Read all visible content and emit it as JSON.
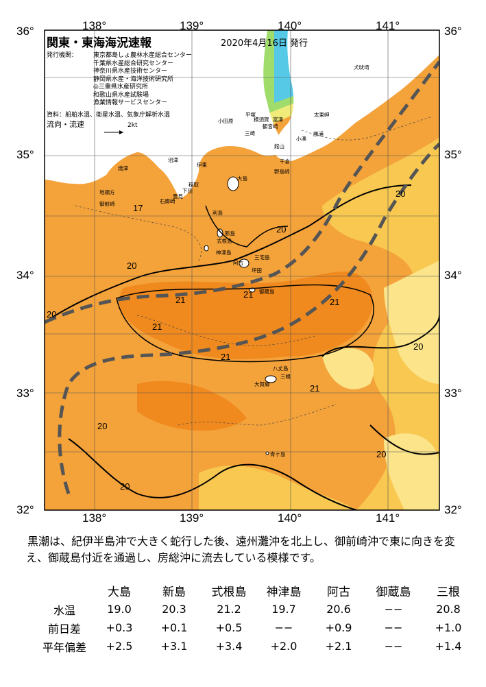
{
  "map": {
    "title": "関東・東海海況速報",
    "date": "2020年4月16日 発行",
    "issuer_label": "発行機関：",
    "issuers": [
      "東京都島しょ農林水産総合センター",
      "千葉県水産総合研究センター",
      "神奈川県水産技術センター",
      "静岡県水産・海洋技術研究所",
      "◎三重県水産研究所",
      "和歌山県水産試験場",
      "漁業情報サービスセンター"
    ],
    "data_source": "資料：船舶水温、衛星水温、気象庁解析水温",
    "flow_label": "流向・流速",
    "flow_scale": "2kt",
    "lon_ticks": [
      "138°",
      "139°",
      "140°",
      "141°"
    ],
    "lat_ticks": [
      "36°",
      "35°",
      "34°",
      "33°",
      "32°"
    ],
    "places": [
      {
        "name": "犬吠埼",
        "id": "inubosaki"
      },
      {
        "name": "太東岬",
        "id": "taitomisaki"
      },
      {
        "name": "勝浦",
        "id": "katsuura"
      },
      {
        "name": "小湊",
        "id": "kominato"
      },
      {
        "name": "平塚",
        "id": "hiratsuka"
      },
      {
        "name": "横須賀",
        "id": "yokosuka"
      },
      {
        "name": "観音崎",
        "id": "kannonzaki"
      },
      {
        "name": "富津",
        "id": "futtsu"
      },
      {
        "name": "小田原",
        "id": "odawara"
      },
      {
        "name": "館山",
        "id": "tateyama"
      },
      {
        "name": "三崎",
        "id": "misaki"
      },
      {
        "name": "千倉",
        "id": "chikura"
      },
      {
        "name": "野島崎",
        "id": "nojimazaki"
      },
      {
        "name": "沼津",
        "id": "numazu"
      },
      {
        "name": "伊東",
        "id": "ito"
      },
      {
        "name": "焼津",
        "id": "yaizu"
      },
      {
        "name": "稲取",
        "id": "inatori"
      },
      {
        "name": "下田",
        "id": "shimoda"
      },
      {
        "name": "石廊崎",
        "id": "irozaki"
      },
      {
        "name": "雲見",
        "id": "kumomi"
      },
      {
        "name": "地頭方",
        "id": "jitogata"
      },
      {
        "name": "御前崎",
        "id": "omaezaki"
      },
      {
        "name": "大島",
        "id": "oshima"
      },
      {
        "name": "利島",
        "id": "toshima"
      },
      {
        "name": "新島",
        "id": "niijima"
      },
      {
        "name": "式根島",
        "id": "shikinejima"
      },
      {
        "name": "神津島",
        "id": "kozushima"
      },
      {
        "name": "三宅島",
        "id": "miyakejima"
      },
      {
        "name": "阿古",
        "id": "ako"
      },
      {
        "name": "坪田",
        "id": "tsubota"
      },
      {
        "name": "御蔵島",
        "id": "mikurajima"
      },
      {
        "name": "八丈島",
        "id": "hachijojima"
      },
      {
        "name": "大賀郷",
        "id": "okago"
      },
      {
        "name": "三根",
        "id": "mitsune"
      },
      {
        "name": "青ヶ島",
        "id": "aogashima"
      }
    ],
    "contour_labels": [
      "17",
      "20",
      "20",
      "20",
      "20",
      "20",
      "20",
      "20",
      "20",
      "21",
      "21",
      "21",
      "21",
      "21",
      "21"
    ],
    "colors": {
      "very_warm": "#f08a1e",
      "warm": "#f4a23a",
      "mid": "#f8c850",
      "pale": "#fbe48a",
      "cool_yellow": "#f1ec7a",
      "green": "#49c46e",
      "cyan": "#56c9e6",
      "blue": "#2f86d6",
      "kuroshio_line": "#555555"
    }
  },
  "summary": "黒潮は、紀伊半島沖で大きく蛇行した後、遠州灘沖を北上し、御前崎沖で東に向きを変え、御蔵島付近を通過し、房総沖に流去している模様です。",
  "table": {
    "columns": [
      "大島",
      "新島",
      "式根島",
      "神津島",
      "阿古",
      "御蔵島",
      "三根"
    ],
    "rows": [
      {
        "label": "水温",
        "values": [
          "19.0",
          "20.3",
          "21.2",
          "19.7",
          "20.6",
          "−−",
          "20.8"
        ]
      },
      {
        "label": "前日差",
        "values": [
          "+0.3",
          "+0.1",
          "+0.5",
          "−−",
          "+0.9",
          "−−",
          "+1.0"
        ]
      },
      {
        "label": "平年偏差",
        "values": [
          "+2.5",
          "+3.1",
          "+3.4",
          "+2.0",
          "+2.1",
          "−−",
          "+1.4"
        ]
      }
    ]
  }
}
